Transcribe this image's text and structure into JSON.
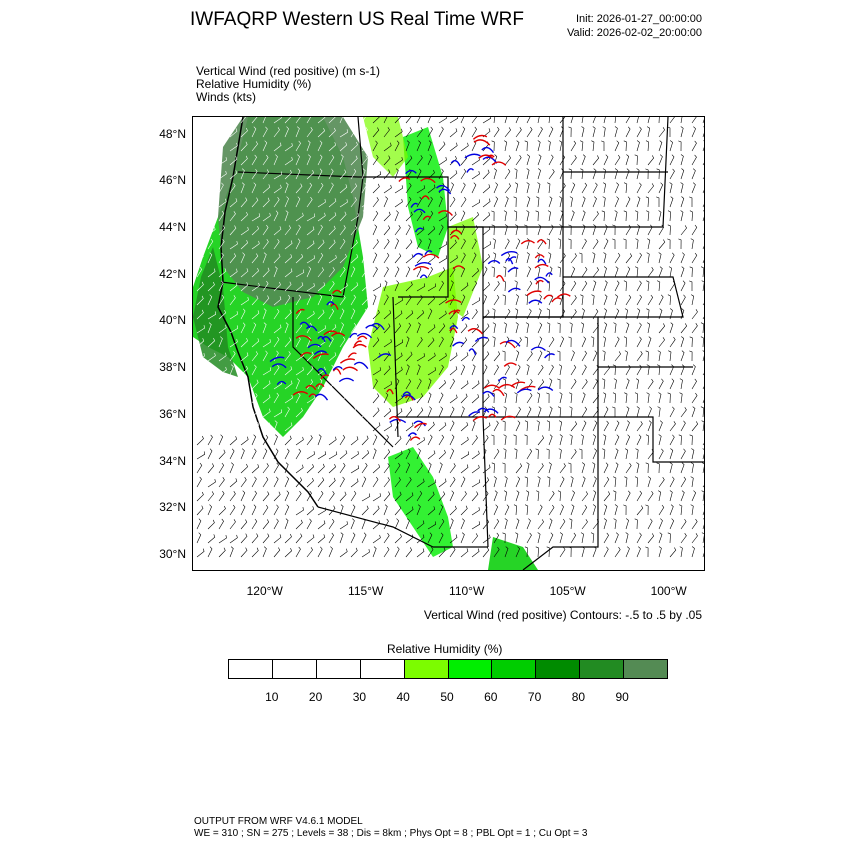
{
  "header": {
    "title": "IWFAQRP Western US Real Time WRF",
    "init": "Init: 2026-01-27_00:00:00",
    "valid": "Valid: 2026-02-02_20:00:00"
  },
  "fields": {
    "vertical_wind": "Vertical Wind (red positive)   (m s-1)",
    "relative_humidity": "Relative Humidity   (%)",
    "winds": "Winds   (kts)"
  },
  "map": {
    "lat_labels": [
      "48°N",
      "46°N",
      "44°N",
      "42°N",
      "40°N",
      "38°N",
      "36°N",
      "34°N",
      "32°N",
      "30°N"
    ],
    "lon_labels": [
      "120°W",
      "115°W",
      "110°W",
      "105°W",
      "100°W"
    ],
    "contour_note": "Vertical Wind (red positive) Contours: -.5 to .5 by .05",
    "extent": {
      "lon_min": -123.6,
      "lon_max": -98.3,
      "lat_min": 29.4,
      "lat_max": 48.8
    }
  },
  "colorbar": {
    "title": "Relative Humidity   (%)",
    "colors": [
      "#ffffff",
      "#ffffff",
      "#ffffff",
      "#ffffff",
      "#7cfc00",
      "#00ee00",
      "#00cd00",
      "#008b00",
      "#228b22",
      "#548b54"
    ],
    "tick_labels": [
      "10",
      "20",
      "30",
      "40",
      "50",
      "60",
      "70",
      "80",
      "90"
    ]
  },
  "footer": {
    "line1": "OUTPUT FROM WRF V4.6.1 MODEL",
    "line2": "WE = 310 ; SN = 275 ; Levels = 38 ; Dis = 8km ; Phys Opt = 8 ; PBL Opt = 1 ; Cu Opt = 3"
  }
}
